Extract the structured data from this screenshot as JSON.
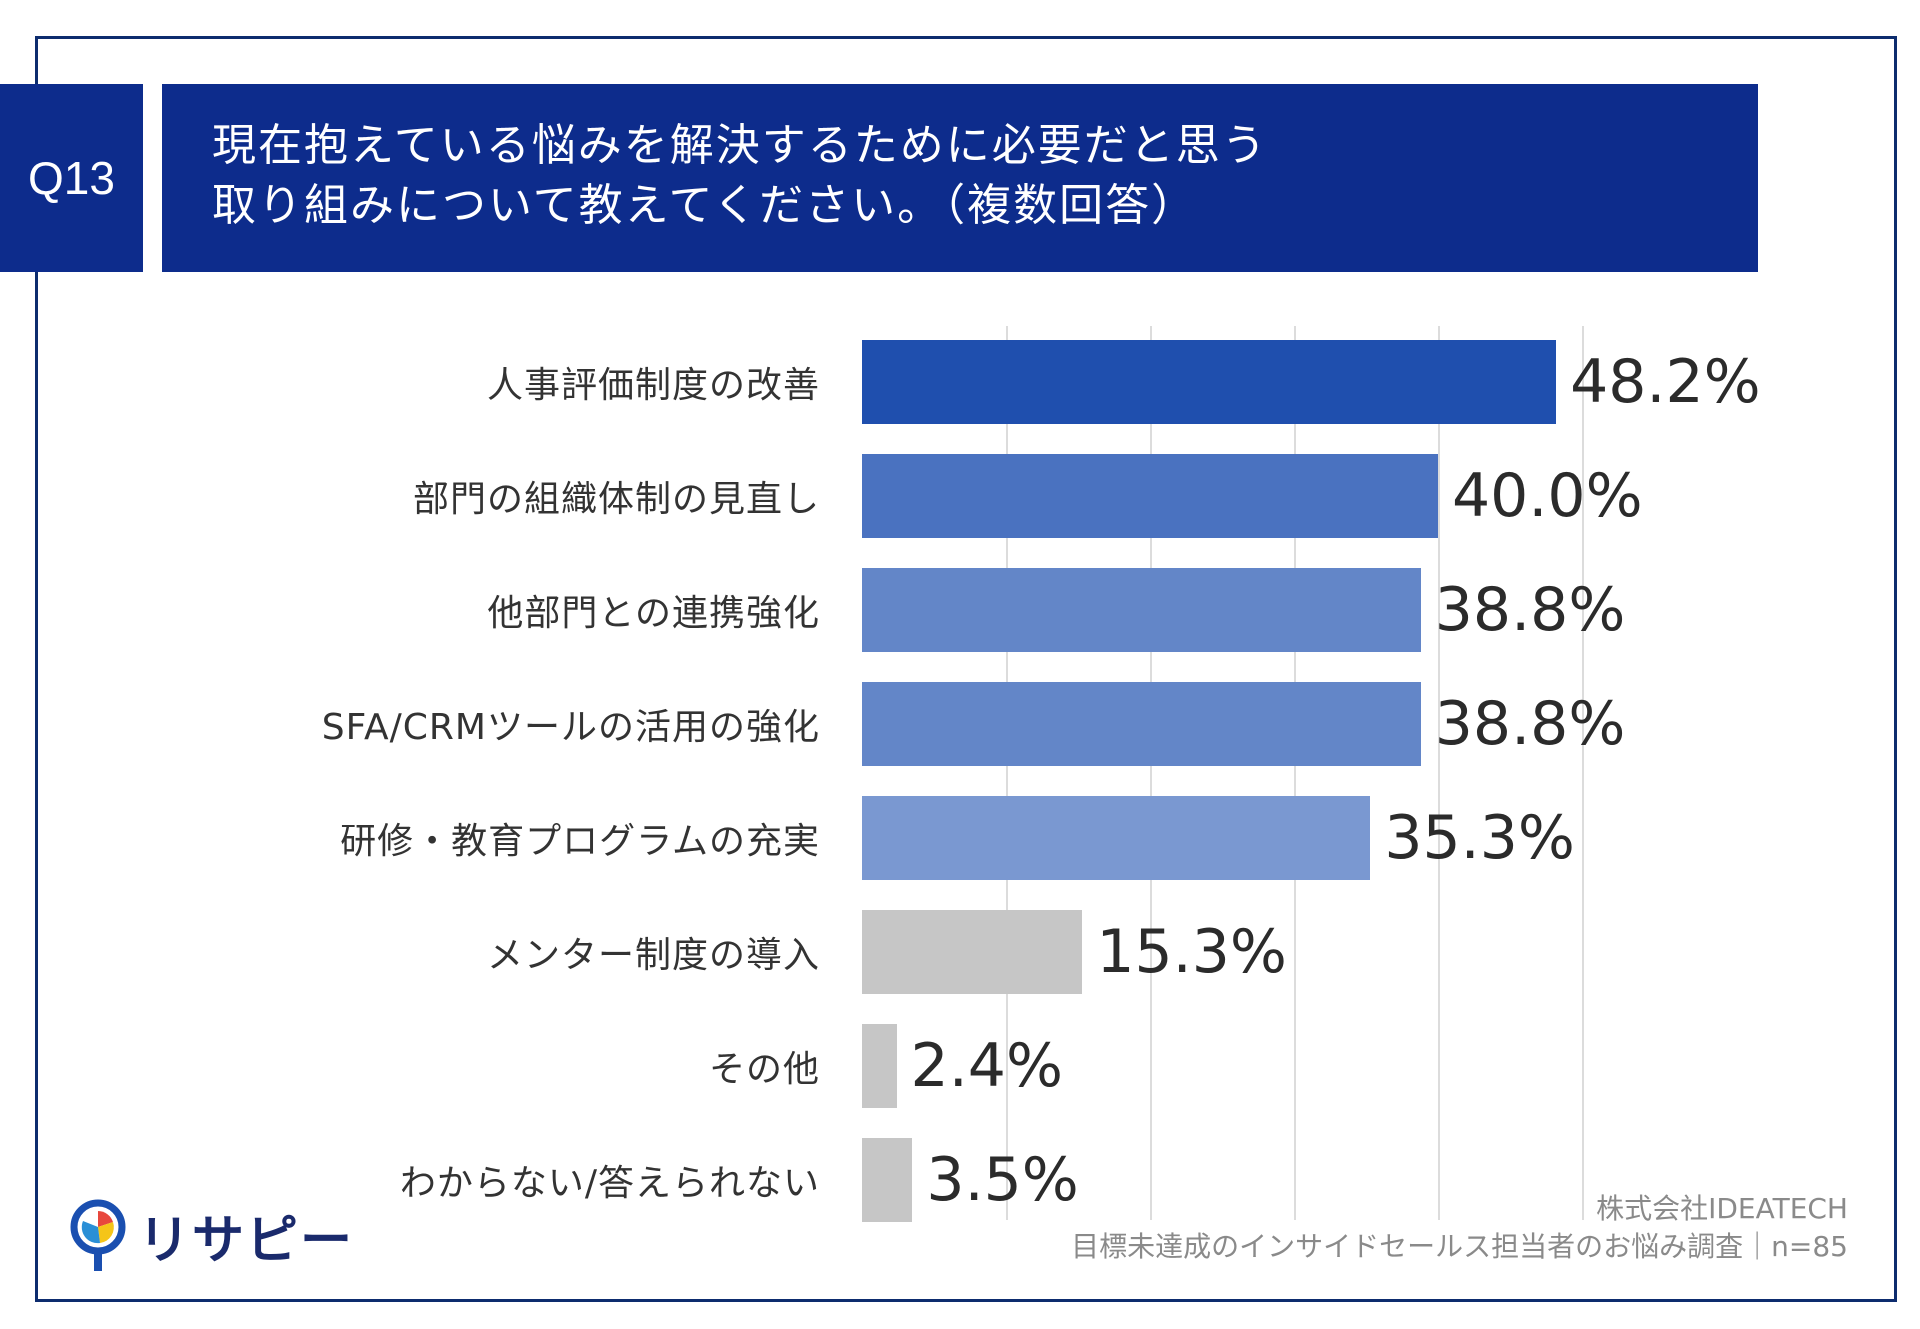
{
  "question": {
    "number": "Q13",
    "line1": "現在抱えている悩みを解決するために必要だと思う",
    "line2": "取り組みについて教えてください。（複数回答）"
  },
  "chart_data": {
    "type": "bar",
    "orientation": "horizontal",
    "categories": [
      "人事評価制度の改善",
      "部門の組織体制の見直し",
      "他部門との連携強化",
      "SFA/CRMツールの活用の強化",
      "研修・教育プログラムの充実",
      "メンター制度の導入",
      "その他",
      "わからない/答えられない"
    ],
    "values": [
      48.2,
      40.0,
      38.8,
      38.8,
      35.3,
      15.3,
      2.4,
      3.5
    ],
    "value_labels": [
      "48.2%",
      "40.0%",
      "38.8%",
      "38.8%",
      "35.3%",
      "15.3%",
      "2.4%",
      "3.5%"
    ],
    "bar_colors": [
      "#1f4fae",
      "#4a72c0",
      "#6386c8",
      "#6386c8",
      "#7a98d1",
      "#c6c6c6",
      "#c6c6c6",
      "#c6c6c6"
    ],
    "xlim": [
      0,
      50
    ],
    "grid_step": 10,
    "title": "",
    "xlabel": "",
    "ylabel": ""
  },
  "source": {
    "company": "株式会社IDEATECH",
    "survey": "目標未達成のインサイドセールス担当者のお悩み調査｜n=85"
  },
  "logo": {
    "text": "リサピー"
  }
}
